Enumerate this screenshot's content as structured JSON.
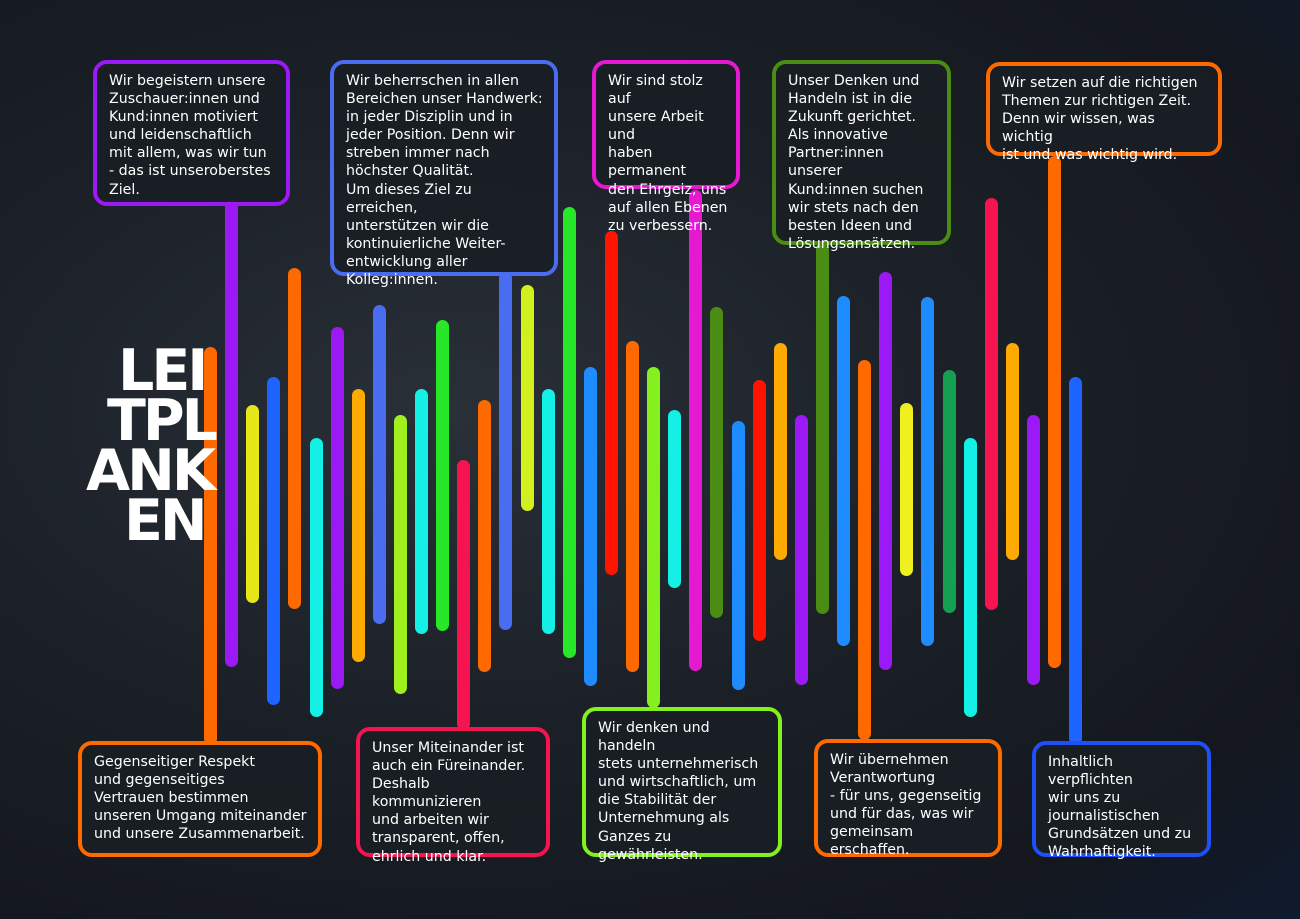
{
  "title": {
    "line1": "LEI",
    "line2": "TPL",
    "line3": "ANK",
    "line4": "EN"
  },
  "boxes": {
    "zuschauer": "Wir begeistern unsere\nZuschauer:innen und\nKund:innen motiviert\nund leidenschaftlich\nmit allem, was wir tun\n- das ist unseroberstes\nZiel.",
    "handwerk": "Wir beherrschen in allen\nBereichen unser Handwerk:\nin jeder Disziplin und in\njeder Position. Denn wir\nstreben immer nach\nhöchster Qualität.\nUm dieses Ziel zu erreichen,\nunterstützen wir die\nkontinuierliche Weiter-\nentwicklung aller\nKolleg:innen.",
    "stolz": "Wir sind stolz auf\nunsere Arbeit und\nhaben permanent\nden Ehrgeiz, uns\nauf allen Ebenen\nzu verbessern.",
    "zukunft": "Unser Denken und\nHandeln ist in die\nZukunft gerichtet.\nAls innovative\nPartner:innen unserer\nKund:innen suchen\nwir stets nach den\nbesten Ideen und\nLösungsansätzen.",
    "themen": "Wir setzen auf die richtigen\nThemen zur richtigen Zeit.\nDenn wir wissen, was wichtig\nist und was wichtig wird.",
    "respekt": "Gegenseitiger Respekt\nund gegenseitiges\nVertrauen bestimmen\nunseren Umgang miteinander\nund unsere Zusammenarbeit.",
    "miteinander": "Unser Miteinander ist\nauch ein Füreinander.\nDeshalb kommunizieren\nund arbeiten wir\ntransparent, offen,\nehrlich und klar.",
    "unternehmerisch": "Wir denken und handeln\nstets unternehmerisch\nund wirtschaftlich, um\ndie Stabilität der\nUnternehmung als\nGanzes zu\ngewährleisten.",
    "verantwortung": "Wir übernehmen\nVerantwortung\n- für uns, gegenseitig\nund für das, was wir\ngemeinsam erschaffen.",
    "journalistisch": "Inhaltlich verpflichten\nwir uns zu\njournalistischen\nGrundsätzen und zu\nWahrhaftigkeit."
  },
  "colors": {
    "purple": "#9b19f5",
    "blue": "#4a6cf0",
    "magenta": "#e619d2",
    "green": "#4a8c14",
    "orange": "#ff6a00",
    "red": "#f51450",
    "lime": "#84f01e",
    "royal": "#1e64ff",
    "yellow": "#f0f01e",
    "cyan": "#14f0e6",
    "amber": "#ffaa00",
    "scarlet": "#ff1400"
  },
  "bars": [
    {
      "color": "#ff6a00",
      "top": 347,
      "bottom": 745,
      "connector": "respekt"
    },
    {
      "color": "#9b19f5",
      "top": 200,
      "bottom": 667,
      "connector": "zuschauer"
    },
    {
      "color": "#e6e619",
      "top": 405,
      "bottom": 603
    },
    {
      "color": "#1e64ff",
      "top": 377,
      "bottom": 705
    },
    {
      "color": "#ff6a00",
      "top": 268,
      "bottom": 609
    },
    {
      "color": "#14f0e6",
      "top": 438,
      "bottom": 717
    },
    {
      "color": "#9b19f5",
      "top": 327,
      "bottom": 689
    },
    {
      "color": "#ffaa00",
      "top": 389,
      "bottom": 662
    },
    {
      "color": "#4a6cf0",
      "top": 305,
      "bottom": 624
    },
    {
      "color": "#a0f01e",
      "top": 415,
      "bottom": 694
    },
    {
      "color": "#14f0e6",
      "top": 389,
      "bottom": 634
    },
    {
      "color": "#28e628",
      "top": 320,
      "bottom": 631
    },
    {
      "color": "#f51450",
      "top": 460,
      "bottom": 730,
      "connector": "miteinander"
    },
    {
      "color": "#ff6a00",
      "top": 400,
      "bottom": 672
    },
    {
      "color": "#4a6cf0",
      "top": 272,
      "bottom": 630,
      "connector": "handwerk"
    },
    {
      "color": "#d2f01e",
      "top": 285,
      "bottom": 511
    },
    {
      "color": "#14f0e6",
      "top": 389,
      "bottom": 634
    },
    {
      "color": "#28e628",
      "top": 207,
      "bottom": 658
    },
    {
      "color": "#1e8cff",
      "top": 367,
      "bottom": 686
    },
    {
      "color": "#ff1400",
      "top": 231,
      "bottom": 575
    },
    {
      "color": "#ff6a00",
      "top": 341,
      "bottom": 672
    },
    {
      "color": "#84f01e",
      "top": 367,
      "bottom": 708,
      "connector": "unternehmerisch"
    },
    {
      "color": "#14f0e6",
      "top": 410,
      "bottom": 588
    },
    {
      "color": "#e619d2",
      "top": 190,
      "bottom": 671,
      "connector": "stolz"
    },
    {
      "color": "#4a8c14",
      "top": 307,
      "bottom": 618
    },
    {
      "color": "#1e8cff",
      "top": 421,
      "bottom": 690
    },
    {
      "color": "#ff1400",
      "top": 380,
      "bottom": 641
    },
    {
      "color": "#ffaa00",
      "top": 343,
      "bottom": 560
    },
    {
      "color": "#9b19f5",
      "top": 415,
      "bottom": 685
    },
    {
      "color": "#4a8c14",
      "top": 243,
      "bottom": 614,
      "connector": "zukunft"
    },
    {
      "color": "#1e8cff",
      "top": 296,
      "bottom": 646
    },
    {
      "color": "#ff6a00",
      "top": 360,
      "bottom": 740,
      "connector": "verantwortung"
    },
    {
      "color": "#9b19f5",
      "top": 272,
      "bottom": 670
    },
    {
      "color": "#f0f01e",
      "top": 403,
      "bottom": 576
    },
    {
      "color": "#1e8cff",
      "top": 297,
      "bottom": 646
    },
    {
      "color": "#14a050",
      "top": 370,
      "bottom": 613
    },
    {
      "color": "#14f0e6",
      "top": 438,
      "bottom": 717
    },
    {
      "color": "#f51450",
      "top": 198,
      "bottom": 610
    },
    {
      "color": "#ffaa00",
      "top": 343,
      "bottom": 560
    },
    {
      "color": "#9b19f5",
      "top": 415,
      "bottom": 685
    },
    {
      "color": "#ff6a00",
      "top": 156,
      "bottom": 668,
      "connector": "themen"
    },
    {
      "color": "#1e64ff",
      "top": 377,
      "bottom": 745,
      "connector": "journalistisch"
    }
  ]
}
